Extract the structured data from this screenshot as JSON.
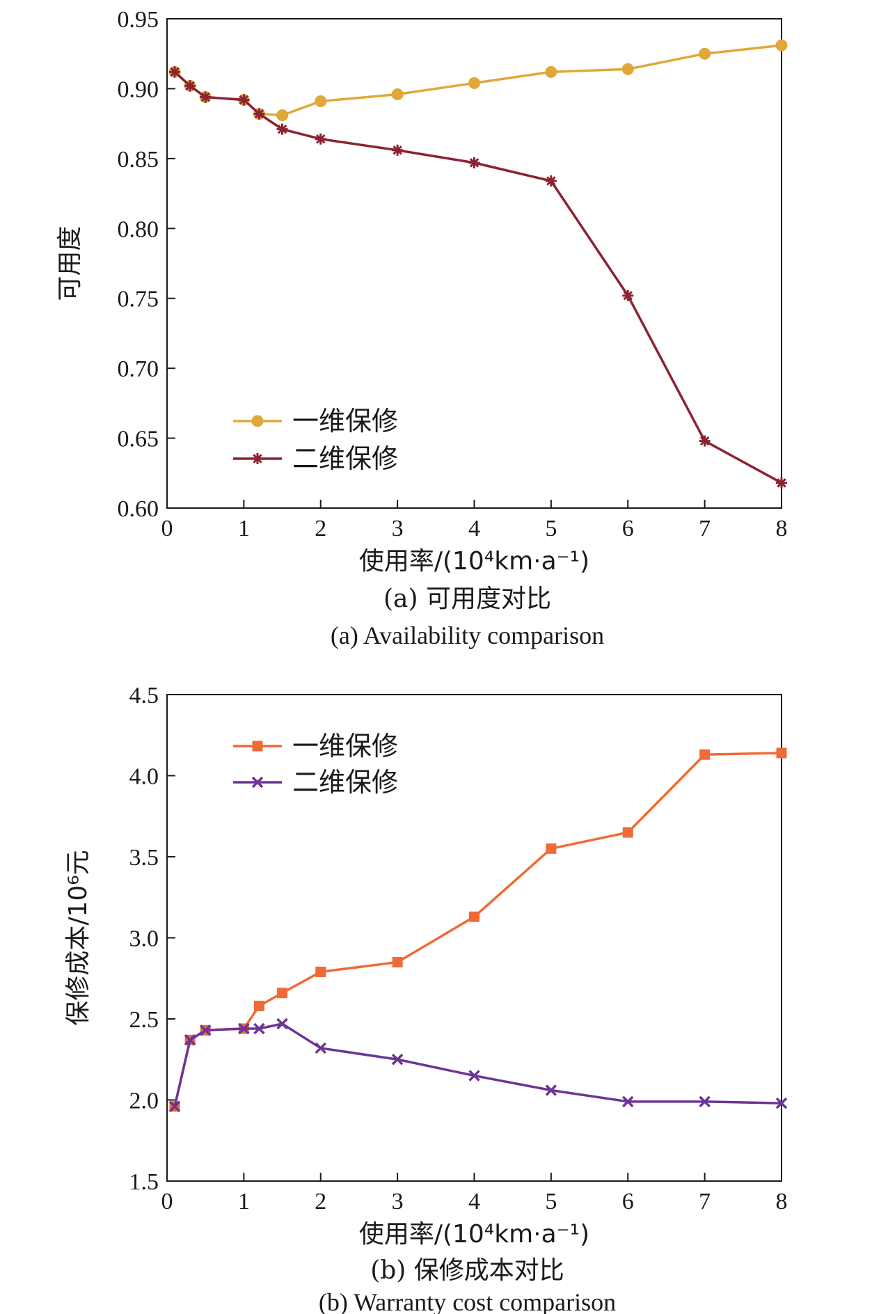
{
  "chart_data": [
    {
      "type": "line",
      "ylabel": "可用度",
      "xlabel": "使用率/(10⁴km·a⁻¹)",
      "caption_cn": "(a) 可用度对比",
      "caption_en": "(a) Availability comparison",
      "xlim": [
        0,
        8
      ],
      "ylim": [
        0.6,
        0.95
      ],
      "xticks": [
        "0",
        "1",
        "2",
        "3",
        "4",
        "5",
        "6",
        "7",
        "8"
      ],
      "yticks": [
        "0.60",
        "0.65",
        "0.70",
        "0.75",
        "0.80",
        "0.85",
        "0.90",
        "0.95"
      ],
      "legend_position": "lower-left",
      "series": [
        {
          "name": "一维保修",
          "color": "#E0A83A",
          "marker": "circle",
          "x": [
            0.1,
            0.3,
            0.5,
            1.0,
            1.2,
            1.5,
            2,
            3,
            4,
            5,
            6,
            7,
            8
          ],
          "y": [
            0.912,
            0.902,
            0.894,
            0.892,
            0.882,
            0.881,
            0.891,
            0.896,
            0.904,
            0.912,
            0.914,
            0.925,
            0.931
          ]
        },
        {
          "name": "二维保修",
          "color": "#8C2232",
          "marker": "asterisk",
          "x": [
            0.1,
            0.3,
            0.5,
            1.0,
            1.2,
            1.5,
            2,
            3,
            4,
            5,
            6,
            7,
            8
          ],
          "y": [
            0.912,
            0.902,
            0.894,
            0.892,
            0.882,
            0.871,
            0.864,
            0.856,
            0.847,
            0.834,
            0.752,
            0.648,
            0.618
          ]
        }
      ]
    },
    {
      "type": "line",
      "ylabel": "保修成本/10⁶元",
      "xlabel": "使用率/(10⁴km·a⁻¹)",
      "caption_cn": "(b) 保修成本对比",
      "caption_en": "(b) Warranty cost comparison",
      "xlim": [
        0,
        8
      ],
      "ylim": [
        1.5,
        4.5
      ],
      "xticks": [
        "0",
        "1",
        "2",
        "3",
        "4",
        "5",
        "6",
        "7",
        "8"
      ],
      "yticks": [
        "1.5",
        "2.0",
        "2.5",
        "3.0",
        "3.5",
        "4.0",
        "4.5"
      ],
      "legend_position": "top-left",
      "series": [
        {
          "name": "一维保修",
          "color": "#F06A35",
          "marker": "square",
          "x": [
            0.1,
            0.3,
            0.5,
            1.0,
            1.2,
            1.5,
            2,
            3,
            4,
            5,
            6,
            7,
            8
          ],
          "y": [
            1.96,
            2.37,
            2.43,
            2.44,
            2.58,
            2.66,
            2.79,
            2.85,
            3.13,
            3.55,
            3.65,
            4.13,
            4.14
          ]
        },
        {
          "name": "二维保修",
          "color": "#6E3594",
          "marker": "x",
          "x": [
            0.1,
            0.3,
            0.5,
            1.0,
            1.2,
            1.5,
            2,
            3,
            4,
            5,
            6,
            7,
            8
          ],
          "y": [
            1.96,
            2.37,
            2.43,
            2.44,
            2.44,
            2.47,
            2.32,
            2.25,
            2.15,
            2.06,
            1.99,
            1.99,
            1.98
          ]
        }
      ]
    }
  ]
}
